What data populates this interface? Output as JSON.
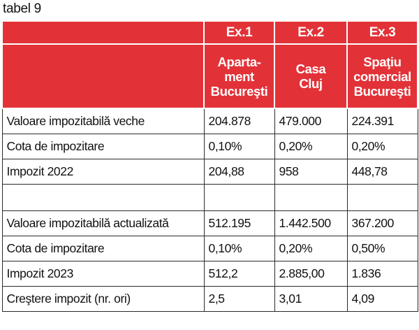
{
  "caption": "tabel 9",
  "header": {
    "columns": [
      "Ex.1",
      "Ex.2",
      "Ex.3"
    ],
    "properties": [
      [
        "Aparta-",
        "ment",
        "Bucureşti"
      ],
      [
        "Casa",
        "Cluj"
      ],
      [
        "Spaţiu",
        "comercial",
        "Bucureşti"
      ]
    ]
  },
  "rows": [
    {
      "label": "Valoare impozitabilă veche",
      "values": [
        "204.878",
        "479.000",
        "224.391"
      ]
    },
    {
      "label": "Cota de impozitare",
      "values": [
        "0,10%",
        "0,20%",
        "0,20%"
      ]
    },
    {
      "label": "Impozit 2022",
      "values": [
        "204,88",
        "958",
        "448,78"
      ]
    },
    {
      "label": "",
      "values": [
        "",
        "",
        ""
      ]
    },
    {
      "label": "Valoare impozitabilă actualizată",
      "values": [
        "512.195",
        "1.442.500",
        "367.200"
      ]
    },
    {
      "label": "Cota de impozitare",
      "values": [
        "0,10%",
        "0,20%",
        "0,50%"
      ]
    },
    {
      "label": "Impozit 2023",
      "values": [
        "512,2",
        "2.885,00",
        "1.836"
      ]
    },
    {
      "label": "Creştere impozit (nr. ori)",
      "values": [
        "2,5",
        "3,01",
        "4,09"
      ]
    }
  ],
  "colors": {
    "header_bg": "#e23238",
    "header_text": "#ffffff",
    "border": "#2a2a2a"
  }
}
